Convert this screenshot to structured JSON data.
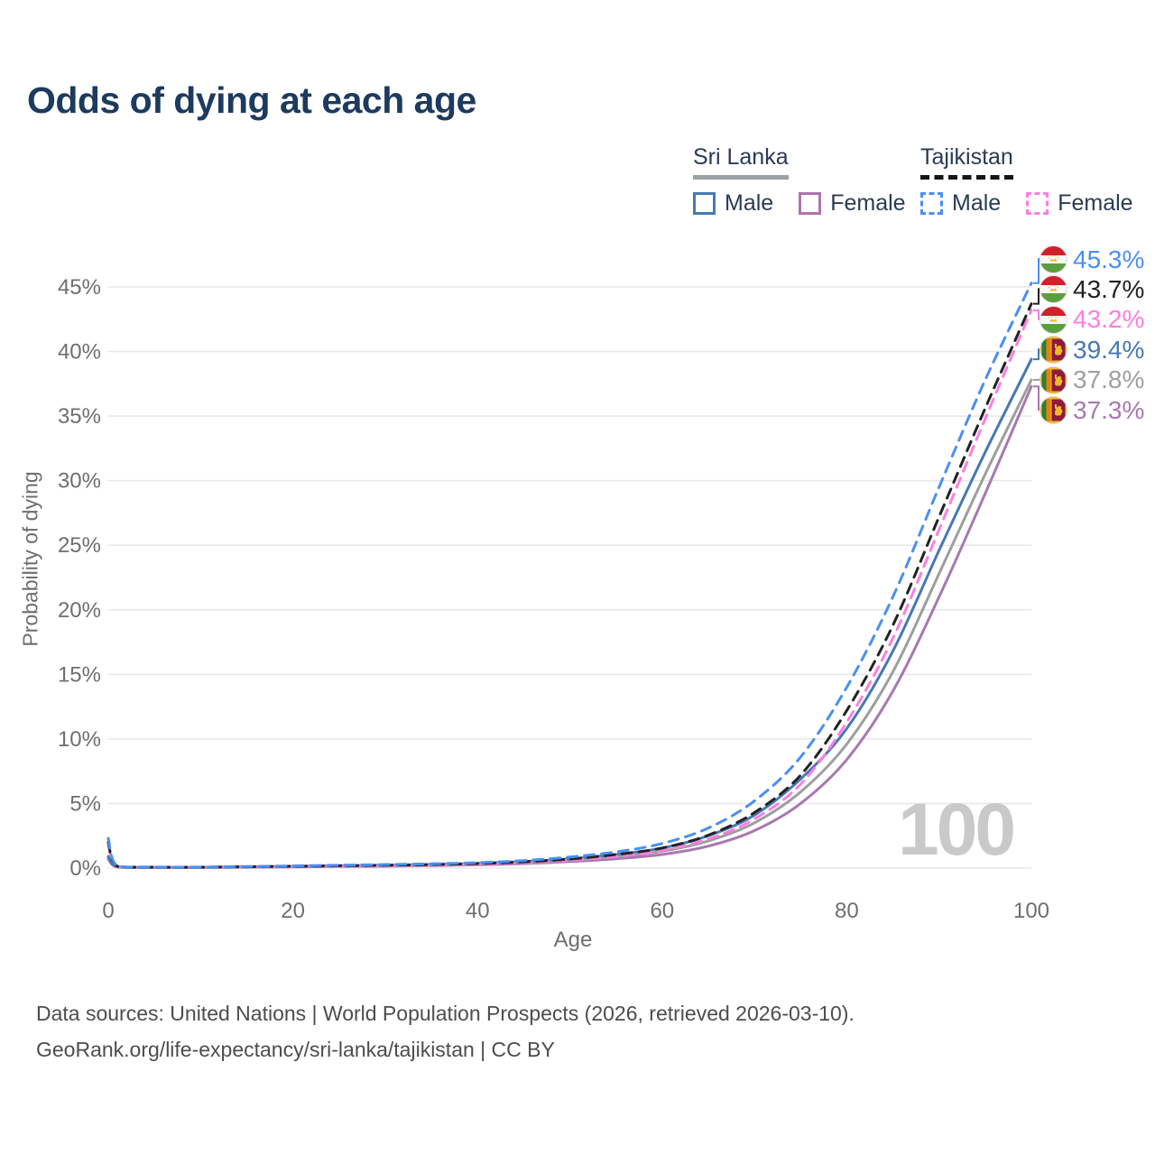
{
  "title": "Odds of dying at each age",
  "legend": {
    "groups": [
      {
        "country": "Sri Lanka",
        "line_style": "solid",
        "items": [
          {
            "label": "Male",
            "color": "#4679b2",
            "dashed": false
          },
          {
            "label": "Female",
            "color": "#ad74ad",
            "dashed": false
          }
        ]
      },
      {
        "country": "Tajikistan",
        "line_style": "dashed",
        "items": [
          {
            "label": "Male",
            "color": "#4a8ff5",
            "dashed": true
          },
          {
            "label": "Female",
            "color": "#ff7de2",
            "dashed": true
          }
        ]
      }
    ]
  },
  "chart_data": {
    "type": "line",
    "title": "Odds of dying at each age",
    "xlabel": "Age",
    "ylabel": "Probability of dying",
    "xlim": [
      0,
      100
    ],
    "ylim": [
      0,
      47
    ],
    "grid": "horizontal",
    "legend_position": "top-right",
    "watermark": "100",
    "x_ticks": [
      0,
      20,
      40,
      60,
      80,
      100
    ],
    "y_tick_values": [
      0,
      5,
      10,
      15,
      20,
      25,
      30,
      35,
      40,
      45
    ],
    "y_tick_labels": [
      "0%",
      "5%",
      "10%",
      "15%",
      "20%",
      "25%",
      "30%",
      "35%",
      "40%",
      "45%"
    ],
    "ages": [
      0,
      1,
      5,
      10,
      15,
      20,
      25,
      30,
      35,
      40,
      45,
      50,
      55,
      60,
      65,
      70,
      75,
      80,
      85,
      90,
      95,
      100
    ],
    "series": [
      {
        "name": "Tajikistan Male",
        "country": "Tajikistan",
        "sex": "Male",
        "flag": "tajikistan",
        "color": "#4a8ff5",
        "dashed": true,
        "end_label": "45.3%",
        "values": [
          2.3,
          0.15,
          0.08,
          0.08,
          0.12,
          0.17,
          0.22,
          0.27,
          0.33,
          0.42,
          0.58,
          0.85,
          1.25,
          1.9,
          3.1,
          5.2,
          8.6,
          14.0,
          21.0,
          29.5,
          37.8,
          45.3
        ]
      },
      {
        "name": "Tajikistan",
        "country": "Tajikistan",
        "sex": "Both",
        "flag": "tajikistan",
        "color": "#222222",
        "dashed": true,
        "end_label": "43.7%",
        "values": [
          2.0,
          0.13,
          0.07,
          0.07,
          0.1,
          0.14,
          0.18,
          0.22,
          0.27,
          0.35,
          0.48,
          0.7,
          1.05,
          1.55,
          2.55,
          4.3,
          7.2,
          12.2,
          18.8,
          27.2,
          35.6,
          43.7
        ]
      },
      {
        "name": "Tajikistan Female",
        "country": "Tajikistan",
        "sex": "Female",
        "flag": "tajikistan",
        "color": "#ff7de2",
        "dashed": true,
        "end_label": "43.2%",
        "values": [
          1.8,
          0.12,
          0.06,
          0.06,
          0.09,
          0.12,
          0.15,
          0.18,
          0.23,
          0.3,
          0.4,
          0.6,
          0.9,
          1.35,
          2.25,
          3.8,
          6.5,
          11.3,
          17.8,
          26.2,
          34.8,
          43.2
        ]
      },
      {
        "name": "Sri Lanka Male",
        "country": "Sri Lanka",
        "sex": "Male",
        "flag": "sri-lanka",
        "color": "#4679b2",
        "dashed": false,
        "end_label": "39.4%",
        "values": [
          0.9,
          0.1,
          0.05,
          0.06,
          0.1,
          0.14,
          0.18,
          0.22,
          0.28,
          0.36,
          0.5,
          0.72,
          1.05,
          1.55,
          2.5,
          4.1,
          6.9,
          10.8,
          16.8,
          24.6,
          32.2,
          39.4
        ]
      },
      {
        "name": "Sri Lanka",
        "country": "Sri Lanka",
        "sex": "Both",
        "flag": "sri-lanka",
        "color": "#9e9e9e",
        "dashed": false,
        "end_label": "37.8%",
        "values": [
          0.8,
          0.09,
          0.04,
          0.05,
          0.08,
          0.12,
          0.15,
          0.18,
          0.23,
          0.3,
          0.42,
          0.6,
          0.88,
          1.3,
          2.1,
          3.5,
          5.9,
          9.6,
          15.2,
          22.8,
          30.5,
          37.8
        ]
      },
      {
        "name": "Sri Lanka Female",
        "country": "Sri Lanka",
        "sex": "Female",
        "flag": "sri-lanka",
        "color": "#a878b0",
        "dashed": false,
        "end_label": "37.3%",
        "values": [
          0.7,
          0.08,
          0.04,
          0.04,
          0.06,
          0.09,
          0.12,
          0.15,
          0.19,
          0.25,
          0.34,
          0.5,
          0.72,
          1.05,
          1.7,
          2.9,
          5.0,
          8.4,
          13.7,
          21.0,
          29.0,
          37.3
        ]
      }
    ]
  },
  "footer": {
    "line1": "Data sources: United Nations | World Population Prospects (2026, retrieved 2026-03-10).",
    "line2": "GeoRank.org/life-expectancy/sri-lanka/tajikistan | CC BY"
  },
  "colors": {
    "title": "#1d3a5f",
    "axis_text": "#6e6e6e",
    "gridline": "#e7e7e7",
    "watermark": "#c9c9c9",
    "footer_text": "#4d4d4d"
  }
}
